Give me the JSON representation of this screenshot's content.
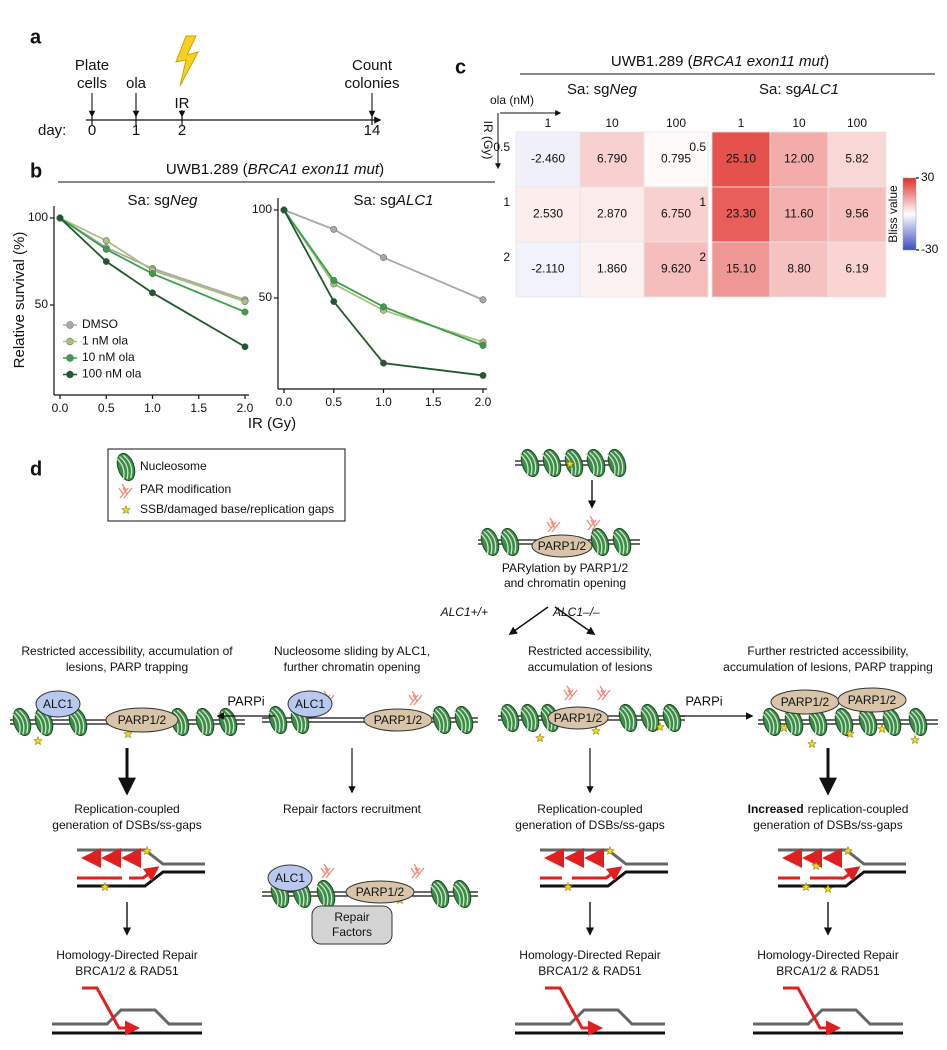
{
  "panels": [
    "a",
    "b",
    "c",
    "d"
  ],
  "timeline": {
    "day_label": "day:",
    "days": [
      0,
      1,
      2,
      14
    ],
    "events": [
      [
        "Plate",
        "cells"
      ],
      [
        "ola"
      ],
      [
        "IR"
      ],
      [
        "Count",
        "colonies"
      ]
    ]
  },
  "panel_b": {
    "title": [
      "UWB1.289 (",
      "BRCA1 exon11 mut",
      ")"
    ],
    "ylabel": "Relative survival (%)",
    "xlabel": "IR (Gy)"
  },
  "panel_c": {
    "title": [
      "UWB1.289 (",
      "BRCA1 exon11 mut",
      ")"
    ],
    "colorbar": {
      "label": "Bliss value",
      "lim": [
        -30,
        30
      ],
      "ticks": [
        -30,
        30
      ]
    }
  },
  "chart_data": [
    {
      "type": "line",
      "subtitle": [
        "Sa: sg",
        "Neg"
      ],
      "legend": "lower left",
      "x": [
        0,
        0.5,
        1,
        2
      ],
      "xlim": [
        0,
        2
      ],
      "xticks": [
        {
          "value": 0,
          "label": "0.0"
        },
        {
          "value": 0.5,
          "label": "0.5"
        },
        {
          "value": 1,
          "label": "1.0"
        },
        {
          "value": 1.5,
          "label": "1.5"
        },
        {
          "value": 2,
          "label": "2.0"
        }
      ],
      "ylim": [
        0,
        100
      ],
      "yticks": [
        50,
        100
      ],
      "series": [
        {
          "name": "DMSO",
          "color": "#a9a9a9",
          "values": [
            100,
            83,
            71,
            53
          ]
        },
        {
          "name": "1 nM ola",
          "color": "#a6c27c",
          "values": [
            100,
            87,
            70,
            52
          ]
        },
        {
          "name": "10 nM ola",
          "color": "#3a9e4b",
          "values": [
            100,
            82,
            68,
            46
          ]
        },
        {
          "name": "100 nM ola",
          "color": "#1e5a2b",
          "values": [
            100,
            75,
            57,
            26
          ]
        }
      ]
    },
    {
      "type": "line",
      "subtitle": [
        "Sa: sg",
        "ALC1"
      ],
      "x": [
        0,
        0.5,
        1,
        2
      ],
      "xlim": [
        0,
        2
      ],
      "xticks": [
        {
          "value": 0,
          "label": "0.0"
        },
        {
          "value": 0.5,
          "label": "0.5"
        },
        {
          "value": 1,
          "label": "1.0"
        },
        {
          "value": 1.5,
          "label": "1.5"
        },
        {
          "value": 2,
          "label": "2.0"
        }
      ],
      "ylim": [
        0,
        100
      ],
      "yticks": [
        50,
        100
      ],
      "series": [
        {
          "color": "#a9a9a9",
          "values": [
            100,
            89,
            73,
            49
          ]
        },
        {
          "color": "#a6c27c",
          "values": [
            100,
            58,
            43,
            25
          ]
        },
        {
          "color": "#3a9e4b",
          "values": [
            100,
            60,
            45,
            23
          ]
        },
        {
          "color": "#1e5a2b",
          "values": [
            100,
            48,
            13,
            6
          ]
        }
      ]
    },
    {
      "type": "heatmap",
      "subtitle": [
        "Sa: sg",
        "Neg"
      ],
      "x_title": "ola (nM)",
      "y_title": "IR (Gy)",
      "columns": [
        "1",
        "10",
        "100"
      ],
      "rows": [
        "0.5",
        "1",
        "2"
      ],
      "values": [
        [
          -2.46,
          6.79,
          0.795
        ],
        [
          2.53,
          2.87,
          6.75
        ],
        [
          -2.11,
          1.86,
          9.62
        ]
      ],
      "value_labels": [
        [
          "-2.460",
          "6.790",
          "0.795"
        ],
        [
          "2.530",
          "2.870",
          "6.750"
        ],
        [
          "-2.110",
          "1.860",
          "9.620"
        ]
      ]
    },
    {
      "type": "heatmap",
      "subtitle": [
        "Sa: sg",
        "ALC1"
      ],
      "columns": [
        "1",
        "10",
        "100"
      ],
      "rows": [
        "0.5",
        "1",
        "2"
      ],
      "values": [
        [
          25.1,
          12,
          5.82
        ],
        [
          23.3,
          11.6,
          9.56
        ],
        [
          15.1,
          8.8,
          6.19
        ]
      ],
      "value_labels": [
        [
          "25.10",
          "12.00",
          "5.82"
        ],
        [
          "23.30",
          "11.60",
          "9.56"
        ],
        [
          "15.10",
          "8.80",
          "6.19"
        ]
      ]
    }
  ],
  "diagram": {
    "legend": [
      "Nucleosome",
      "PAR modification",
      "SSB/damaged base/replication gaps"
    ],
    "top": {
      "protein": "PARP1/2",
      "caption": [
        "PARylation by PARP1/2",
        "and chromatin opening"
      ]
    },
    "branches": [
      "ALC1+/+",
      "ALC1–/–"
    ],
    "parpi": [
      "PARPi",
      "PARPi"
    ],
    "columns": [
      {
        "heading": [
          "Restricted accessibility, accumulation of",
          "lesions, PARP trapping"
        ],
        "proteins": [
          "ALC1",
          "PARP1/2"
        ],
        "step": [
          "Replication-coupled",
          "generation of DSBs/ss-gaps"
        ],
        "outcome": [
          "Homology-Directed Repair",
          "BRCA1/2 & RAD51"
        ]
      },
      {
        "heading": [
          "Nucleosome sliding by ALC1,",
          "further chromatin opening"
        ],
        "proteins": [
          "ALC1",
          "PARP1/2"
        ],
        "step": [
          "Repair factors recruitment"
        ],
        "recruit_proteins": [
          "ALC1",
          "PARP1/2"
        ],
        "recruited": [
          "Repair",
          "Factors"
        ]
      },
      {
        "heading": [
          "Restricted accessibility,",
          "accumulation of lesions"
        ],
        "proteins": [
          "PARP1/2"
        ],
        "step": [
          "Replication-coupled",
          "generation of DSBs/ss-gaps"
        ],
        "outcome": [
          "Homology-Directed Repair",
          "BRCA1/2 & RAD51"
        ]
      },
      {
        "heading": [
          "Further restricted accessibility,",
          "accumulation of lesions, PARP trapping"
        ],
        "proteins": [
          "PARP1/2",
          "PARP1/2"
        ],
        "step_emphasis": "Increased",
        "step": [
          "replication-coupled",
          "generation of DSBs/ss-gaps"
        ],
        "outcome": [
          "Homology-Directed Repair",
          "BRCA1/2 & RAD51"
        ]
      }
    ]
  }
}
